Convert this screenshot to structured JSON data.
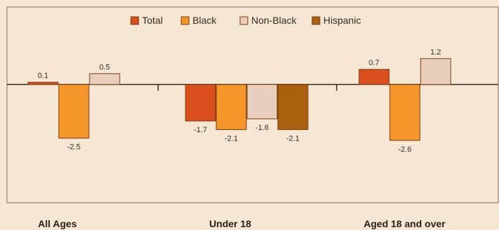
{
  "chart_data": {
    "type": "bar",
    "title": "",
    "xlabel": "",
    "ylabel": "",
    "ylim": [
      -5.5,
      3.6
    ],
    "grid": false,
    "legend_position": "top-center",
    "categories": [
      "All Ages",
      "Under 18",
      "Aged 18 and over"
    ],
    "series": [
      {
        "name": "Total",
        "color": "#d9501e",
        "values": [
          0.1,
          -1.7,
          0.7
        ],
        "labels": [
          "0.1",
          "-1.7",
          "0.7"
        ]
      },
      {
        "name": "Black",
        "color": "#f5962a",
        "values": [
          -2.5,
          -2.1,
          -2.6
        ],
        "labels": [
          "-2.5",
          "-2.1",
          "-2.6"
        ]
      },
      {
        "name": "Non-Black",
        "color": "#e8cfbd",
        "values": [
          0.5,
          -1.6,
          1.2
        ],
        "labels": [
          "0.5",
          "-1.6",
          "1.2"
        ]
      },
      {
        "name": "Hispanic",
        "color": "#a8620f",
        "values": [
          null,
          -2.1,
          null
        ],
        "labels": [
          null,
          "-2.1",
          null
        ]
      }
    ]
  },
  "colors": {
    "background": "#f6e6d4",
    "plot_border": "#8c6a50",
    "bar_stroke": "#7a3a10",
    "axis": "#3a2a1e"
  }
}
